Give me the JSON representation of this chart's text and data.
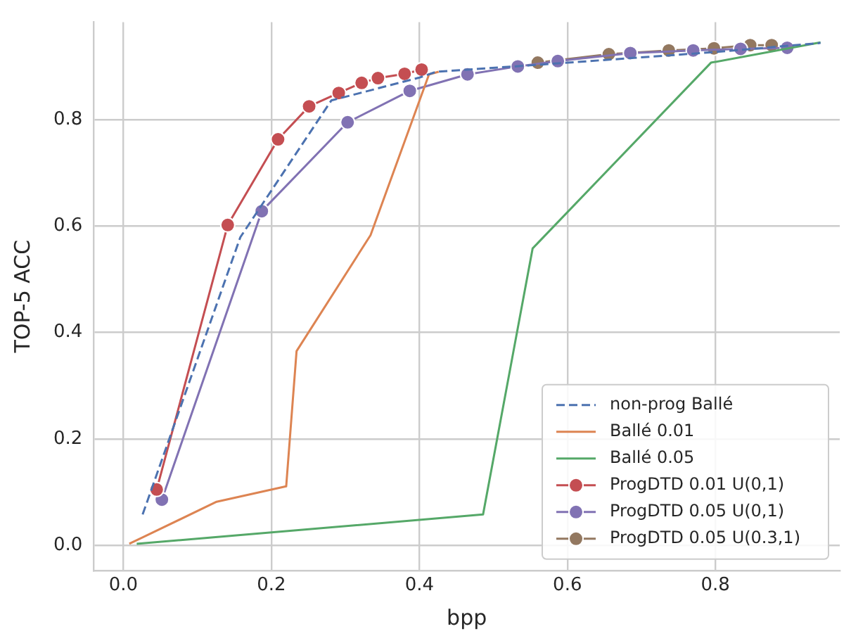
{
  "chart_data": {
    "type": "line",
    "xlabel": "bpp",
    "ylabel": "TOP-5 ACC",
    "xlim": [
      -0.04,
      0.968
    ],
    "ylim": [
      -0.047,
      0.983
    ],
    "xticks": [
      {
        "value": 0,
        "label": "0.0"
      },
      {
        "value": 0.2,
        "label": "0.2"
      },
      {
        "value": 0.4,
        "label": "0.4"
      },
      {
        "value": 0.6,
        "label": "0.6"
      },
      {
        "value": 0.8,
        "label": "0.8"
      }
    ],
    "yticks": [
      {
        "value": 0,
        "label": "0.0"
      },
      {
        "value": 0.2,
        "label": "0.2"
      },
      {
        "value": 0.4,
        "label": "0.4"
      },
      {
        "value": 0.6,
        "label": "0.6"
      },
      {
        "value": 0.8,
        "label": "0.8"
      }
    ],
    "grid": true,
    "legend": "bottom right",
    "series": [
      {
        "name": "non-prog Ballé",
        "color": "#4c72b0",
        "line_style": "dashed",
        "marker": "none",
        "x": [
          0.026,
          0.158,
          0.281,
          0.4,
          0.423,
          0.55,
          0.8,
          0.942
        ],
        "values": [
          0.058,
          0.579,
          0.836,
          0.879,
          0.89,
          0.902,
          0.927,
          0.944
        ]
      },
      {
        "name": "Ballé 0.01",
        "color": "#dd8452",
        "line_style": "solid",
        "marker": "none",
        "x": [
          0.008,
          0.126,
          0.22,
          0.234,
          0.334,
          0.413,
          0.426
        ],
        "values": [
          0.003,
          0.082,
          0.111,
          0.365,
          0.583,
          0.885,
          0.89
        ]
      },
      {
        "name": "Ballé 0.05",
        "color": "#55a868",
        "line_style": "solid",
        "marker": "none",
        "x": [
          0.018,
          0.486,
          0.553,
          0.794,
          0.942
        ],
        "values": [
          0.003,
          0.058,
          0.558,
          0.907,
          0.945
        ]
      },
      {
        "name": "ProgDTD 0.01 U(0,1)",
        "color": "#c44e52",
        "line_style": "solid",
        "marker": "circle",
        "x": [
          0.045,
          0.141,
          0.209,
          0.251,
          0.291,
          0.322,
          0.344,
          0.38,
          0.403
        ],
        "values": [
          0.105,
          0.602,
          0.763,
          0.825,
          0.85,
          0.869,
          0.878,
          0.886,
          0.894
        ]
      },
      {
        "name": "ProgDTD 0.05 U(0,1)",
        "color": "#8172b3",
        "line_style": "solid",
        "marker": "circle",
        "x": [
          0.052,
          0.187,
          0.303,
          0.387,
          0.465,
          0.533,
          0.587,
          0.685,
          0.77,
          0.834,
          0.897
        ],
        "values": [
          0.086,
          0.628,
          0.795,
          0.854,
          0.885,
          0.9,
          0.91,
          0.925,
          0.93,
          0.933,
          0.935
        ]
      },
      {
        "name": "ProgDTD 0.05 U(0.3,1)",
        "color": "#937860",
        "line_style": "solid",
        "marker": "circle",
        "x": [
          0.56,
          0.656,
          0.737,
          0.798,
          0.847,
          0.876
        ],
        "values": [
          0.907,
          0.923,
          0.93,
          0.934,
          0.94,
          0.94
        ]
      }
    ]
  }
}
